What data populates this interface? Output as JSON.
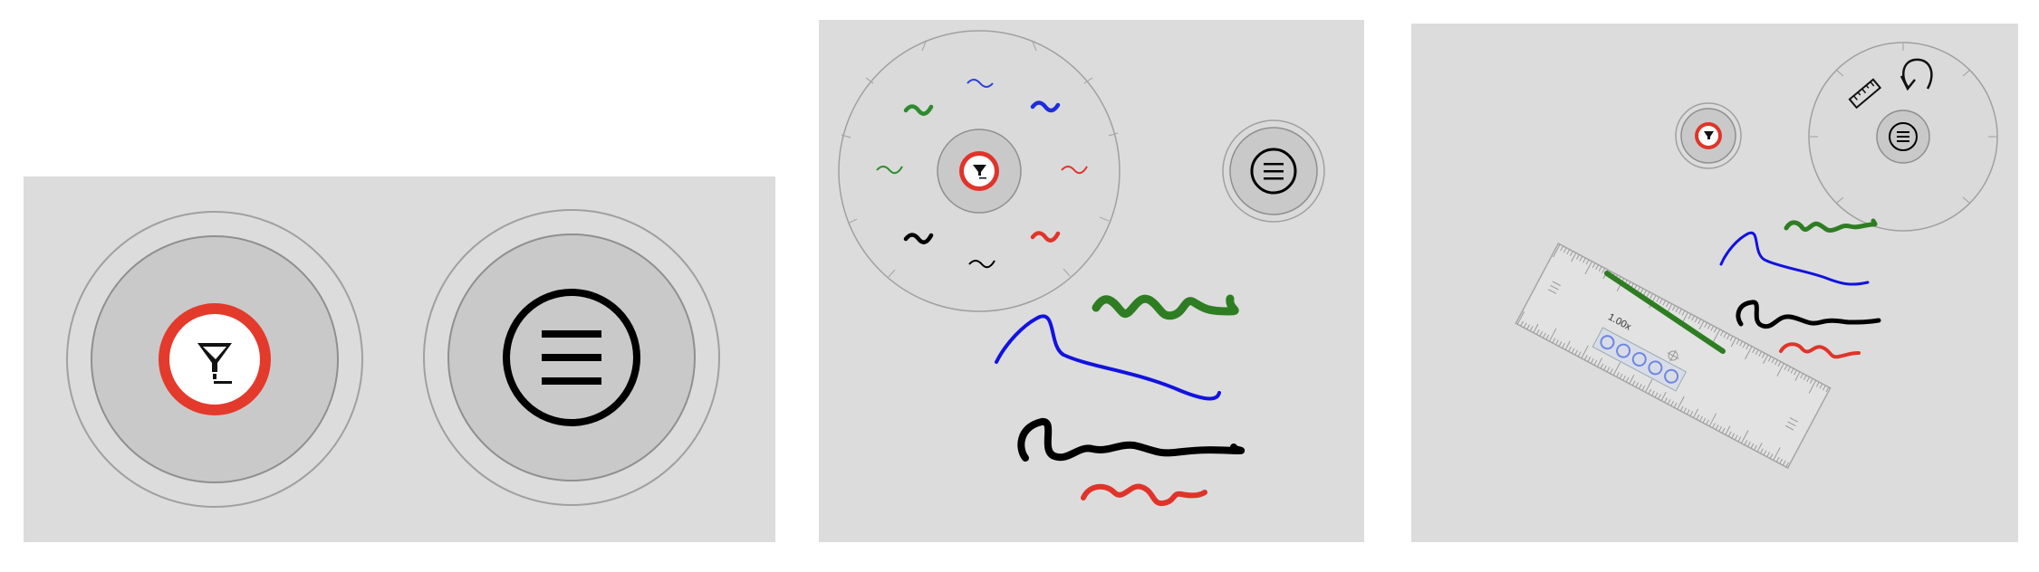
{
  "panels": [
    {
      "name": "closed-toolbar",
      "buttons": [
        "pen-button",
        "menu-button"
      ]
    },
    {
      "name": "pen-color-palette",
      "palette": {
        "colors": {
          "green": "#2e8b2e",
          "blue": "#1e2ddb",
          "red": "#e0342a",
          "black": "#000000"
        },
        "items": [
          "blue-thin",
          "blue-thick",
          "red-thin",
          "red-thick",
          "black-thin",
          "black-thick",
          "green-thin",
          "green-thick"
        ]
      }
    },
    {
      "name": "ruler-toolbar",
      "ruler": {
        "zoom_label": "1.00x"
      }
    }
  ],
  "accent": {
    "pen_ring": "#e0342a",
    "track": "#c8c8c8",
    "ring_outline": "#9a9a9a"
  },
  "ink_strokes": [
    "green",
    "blue",
    "black",
    "red"
  ]
}
